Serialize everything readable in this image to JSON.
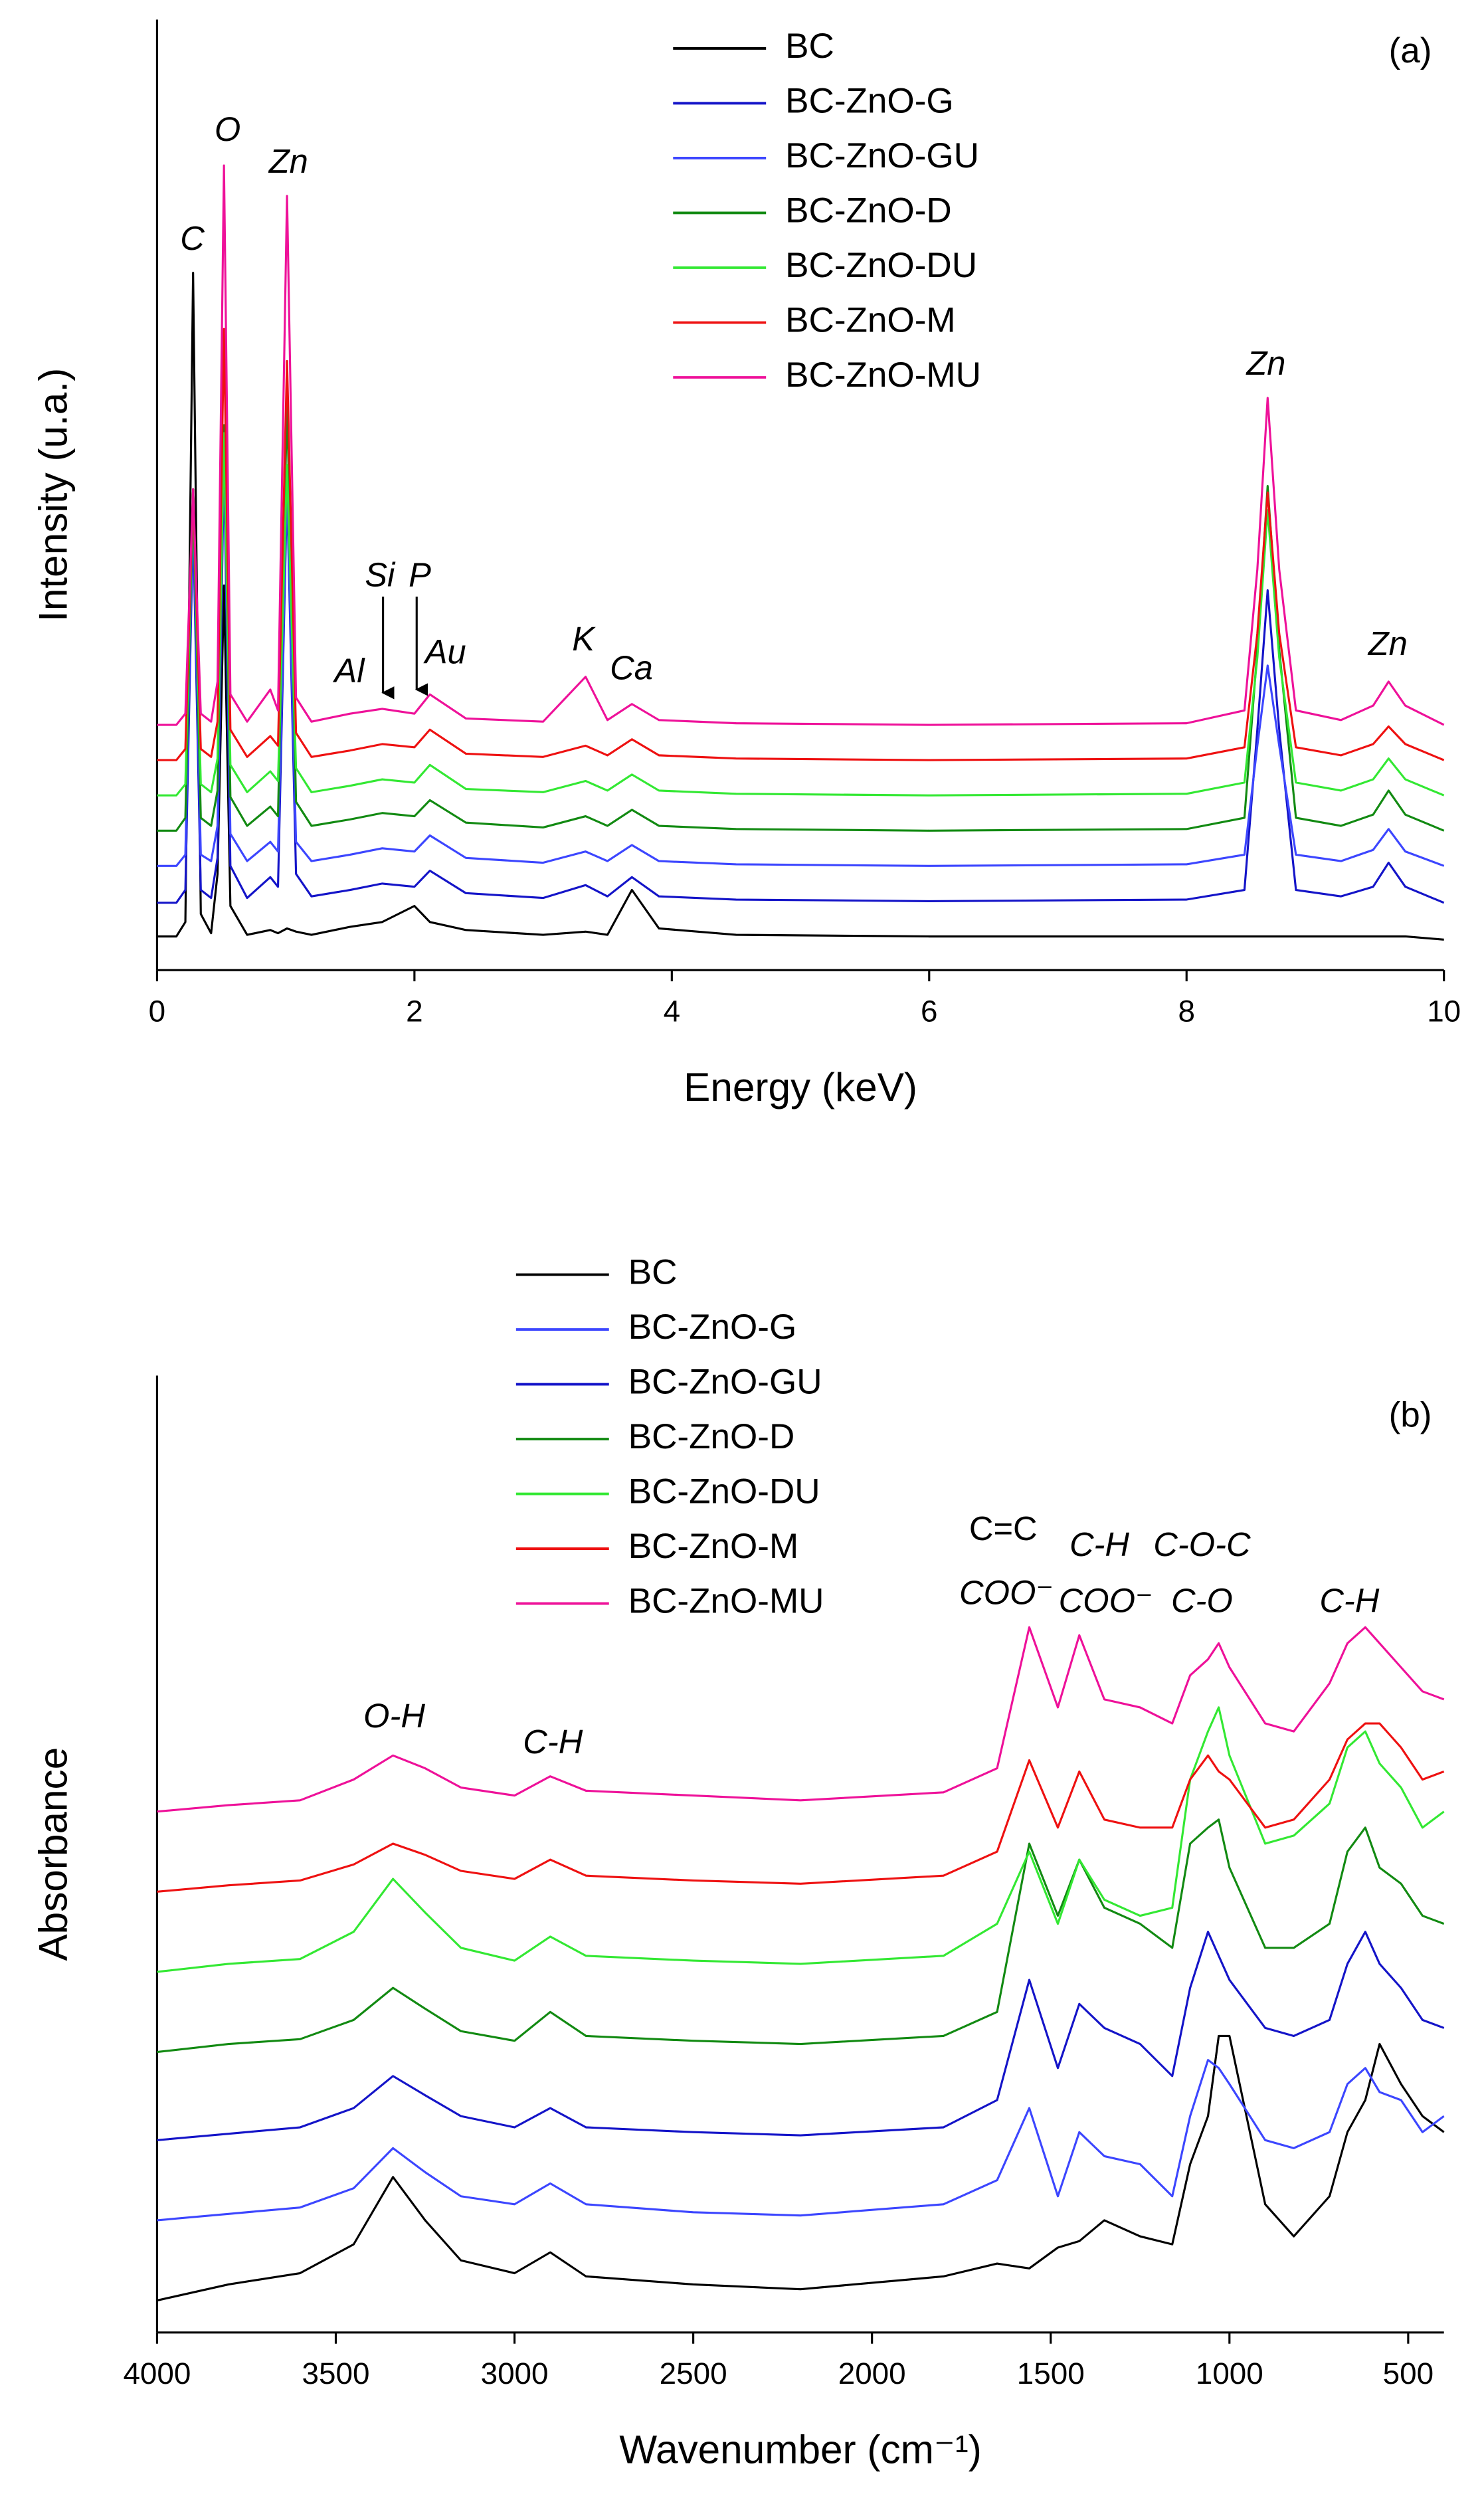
{
  "chart_data": [
    {
      "type": "line",
      "panel_label": "(a)",
      "x_label": "Energy (keV)",
      "y_label": "Intensity (u.a.)",
      "xlim": [
        0,
        10
      ],
      "xticks": [
        0,
        2,
        4,
        6,
        8,
        10
      ],
      "ylim": [
        0,
        600
      ],
      "x": [
        0,
        0.15,
        0.22,
        0.28,
        0.34,
        0.42,
        0.47,
        0.52,
        0.57,
        0.7,
        0.88,
        0.94,
        1.01,
        1.08,
        1.2,
        1.5,
        1.75,
        2.0,
        2.12,
        2.4,
        3.0,
        3.33,
        3.5,
        3.69,
        3.9,
        4.5,
        6,
        8.0,
        8.45,
        8.55,
        8.63,
        8.72,
        8.85,
        9.2,
        9.45,
        9.57,
        9.7,
        10
      ],
      "series": [
        {
          "name": "BC",
          "color": "#000000",
          "values": [
            21,
            21,
            30,
            435,
            35,
            23,
            60,
            240,
            40,
            22,
            25,
            23,
            26,
            24,
            22,
            27,
            30,
            40,
            30,
            25,
            22,
            24,
            22,
            50,
            26,
            22,
            21,
            21,
            21,
            21,
            21,
            21,
            21,
            21,
            21,
            21,
            21,
            19
          ]
        },
        {
          "name": "BC-ZnO-G",
          "color": "#1414c8",
          "values": [
            42,
            42,
            50,
            280,
            50,
            45,
            70,
            320,
            65,
            45,
            58,
            52,
            300,
            60,
            46,
            50,
            54,
            52,
            62,
            48,
            45,
            53,
            46,
            58,
            46,
            44,
            43,
            44,
            50,
            150,
            237,
            150,
            50,
            46,
            52,
            67,
            52,
            42
          ]
        },
        {
          "name": "BC-ZnO-GU",
          "color": "#3c46ff",
          "values": [
            65,
            65,
            72,
            290,
            72,
            68,
            90,
            330,
            85,
            68,
            80,
            74,
            305,
            80,
            68,
            72,
            76,
            74,
            84,
            70,
            67,
            74,
            68,
            78,
            68,
            66,
            65,
            66,
            72,
            140,
            190,
            140,
            72,
            68,
            75,
            88,
            74,
            65
          ]
        },
        {
          "name": "BC-ZnO-D",
          "color": "#128a12",
          "values": [
            87,
            87,
            95,
            300,
            95,
            90,
            112,
            340,
            108,
            90,
            102,
            96,
            355,
            105,
            90,
            94,
            98,
            96,
            106,
            92,
            89,
            96,
            90,
            100,
            90,
            88,
            87,
            88,
            95,
            200,
            302,
            200,
            95,
            90,
            97,
            112,
            97,
            87
          ]
        },
        {
          "name": "BC-ZnO-DU",
          "color": "#33e833",
          "values": [
            109,
            109,
            116,
            300,
            116,
            111,
            132,
            335,
            128,
            111,
            124,
            118,
            315,
            126,
            111,
            115,
            119,
            117,
            128,
            113,
            111,
            118,
            112,
            122,
            112,
            110,
            109,
            110,
            117,
            195,
            287,
            195,
            117,
            112,
            119,
            132,
            119,
            109
          ]
        },
        {
          "name": "BC-ZnO-M",
          "color": "#ee1111",
          "values": [
            131,
            131,
            138,
            300,
            138,
            133,
            155,
            400,
            150,
            133,
            146,
            140,
            380,
            148,
            133,
            137,
            141,
            139,
            150,
            135,
            133,
            140,
            134,
            144,
            134,
            132,
            131,
            132,
            139,
            210,
            298,
            210,
            139,
            134,
            141,
            152,
            141,
            131
          ]
        },
        {
          "name": "BC-ZnO-MU",
          "color": "#ee1199",
          "values": [
            153,
            153,
            160,
            300,
            160,
            155,
            180,
            502,
            172,
            155,
            175,
            162,
            483,
            170,
            155,
            160,
            163,
            160,
            172,
            157,
            155,
            183,
            156,
            166,
            156,
            154,
            153,
            154,
            162,
            250,
            357,
            250,
            162,
            156,
            165,
            180,
            165,
            153
          ]
        }
      ],
      "annotations": [
        "C",
        "O",
        "Zn",
        "Al",
        "Si",
        "P",
        "Au",
        "K",
        "Ca",
        "Zn",
        "Zn"
      ]
    },
    {
      "type": "line",
      "panel_label": "(b)",
      "x_label": "Wavenumber (cm⁻¹)",
      "y_label": "Absorbance",
      "xlim": [
        4000,
        400
      ],
      "xticks": [
        4000,
        3500,
        3000,
        2500,
        2000,
        1500,
        1000,
        500
      ],
      "ylim": [
        0,
        600
      ],
      "x": [
        4000,
        3800,
        3600,
        3450,
        3340,
        3250,
        3150,
        3000,
        2900,
        2800,
        2500,
        2200,
        1800,
        1650,
        1560,
        1480,
        1420,
        1350,
        1250,
        1160,
        1110,
        1060,
        1030,
        1000,
        900,
        820,
        720,
        670,
        620,
        580,
        520,
        460,
        400
      ],
      "series": [
        {
          "name": "BC",
          "color": "#000000",
          "values": [
            20,
            30,
            37,
            55,
            97,
            70,
            45,
            37,
            50,
            35,
            30,
            27,
            35,
            43,
            40,
            53,
            57,
            70,
            60,
            55,
            105,
            135,
            185,
            185,
            80,
            60,
            85,
            125,
            145,
            180,
            155,
            135,
            125
          ]
        },
        {
          "name": "BC-ZnO-G",
          "color": "#3c46ff",
          "values": [
            70,
            74,
            78,
            90,
            115,
            100,
            85,
            80,
            93,
            80,
            75,
            73,
            80,
            95,
            140,
            85,
            125,
            110,
            105,
            85,
            135,
            170,
            165,
            155,
            120,
            115,
            125,
            155,
            165,
            150,
            145,
            125,
            135
          ]
        },
        {
          "name": "BC-ZnO-GU",
          "color": "#1414c8",
          "values": [
            120,
            124,
            128,
            140,
            160,
            148,
            135,
            128,
            140,
            128,
            125,
            123,
            128,
            145,
            220,
            165,
            205,
            190,
            180,
            160,
            215,
            250,
            235,
            220,
            190,
            185,
            195,
            230,
            250,
            230,
            215,
            195,
            190
          ]
        },
        {
          "name": "BC-ZnO-D",
          "color": "#128a12",
          "values": [
            175,
            180,
            183,
            195,
            215,
            202,
            188,
            182,
            200,
            185,
            182,
            180,
            185,
            200,
            305,
            260,
            295,
            265,
            255,
            240,
            305,
            315,
            320,
            290,
            240,
            240,
            255,
            300,
            315,
            290,
            280,
            260,
            255
          ]
        },
        {
          "name": "BC-ZnO-DU",
          "color": "#33e833",
          "values": [
            225,
            230,
            233,
            250,
            283,
            262,
            240,
            232,
            247,
            235,
            232,
            230,
            235,
            255,
            300,
            255,
            295,
            270,
            260,
            265,
            345,
            375,
            390,
            360,
            305,
            310,
            330,
            365,
            375,
            355,
            340,
            315,
            325
          ]
        },
        {
          "name": "BC-ZnO-M",
          "color": "#ee1111",
          "values": [
            275,
            279,
            282,
            292,
            305,
            298,
            288,
            283,
            295,
            285,
            282,
            280,
            285,
            300,
            357,
            315,
            350,
            320,
            315,
            315,
            345,
            360,
            350,
            345,
            315,
            320,
            345,
            370,
            380,
            380,
            365,
            345,
            350
          ]
        },
        {
          "name": "BC-ZnO-MU",
          "color": "#ee1199",
          "values": [
            325,
            329,
            332,
            345,
            360,
            352,
            340,
            335,
            347,
            338,
            335,
            332,
            337,
            352,
            440,
            390,
            435,
            395,
            390,
            380,
            410,
            420,
            430,
            415,
            380,
            375,
            405,
            430,
            440,
            430,
            415,
            400,
            395
          ]
        }
      ],
      "annotations": [
        "O-H",
        "C-H",
        "C=C",
        "COO⁻",
        "C-H",
        "COO⁻",
        "C-O-C",
        "C-O",
        "C-H"
      ]
    }
  ]
}
